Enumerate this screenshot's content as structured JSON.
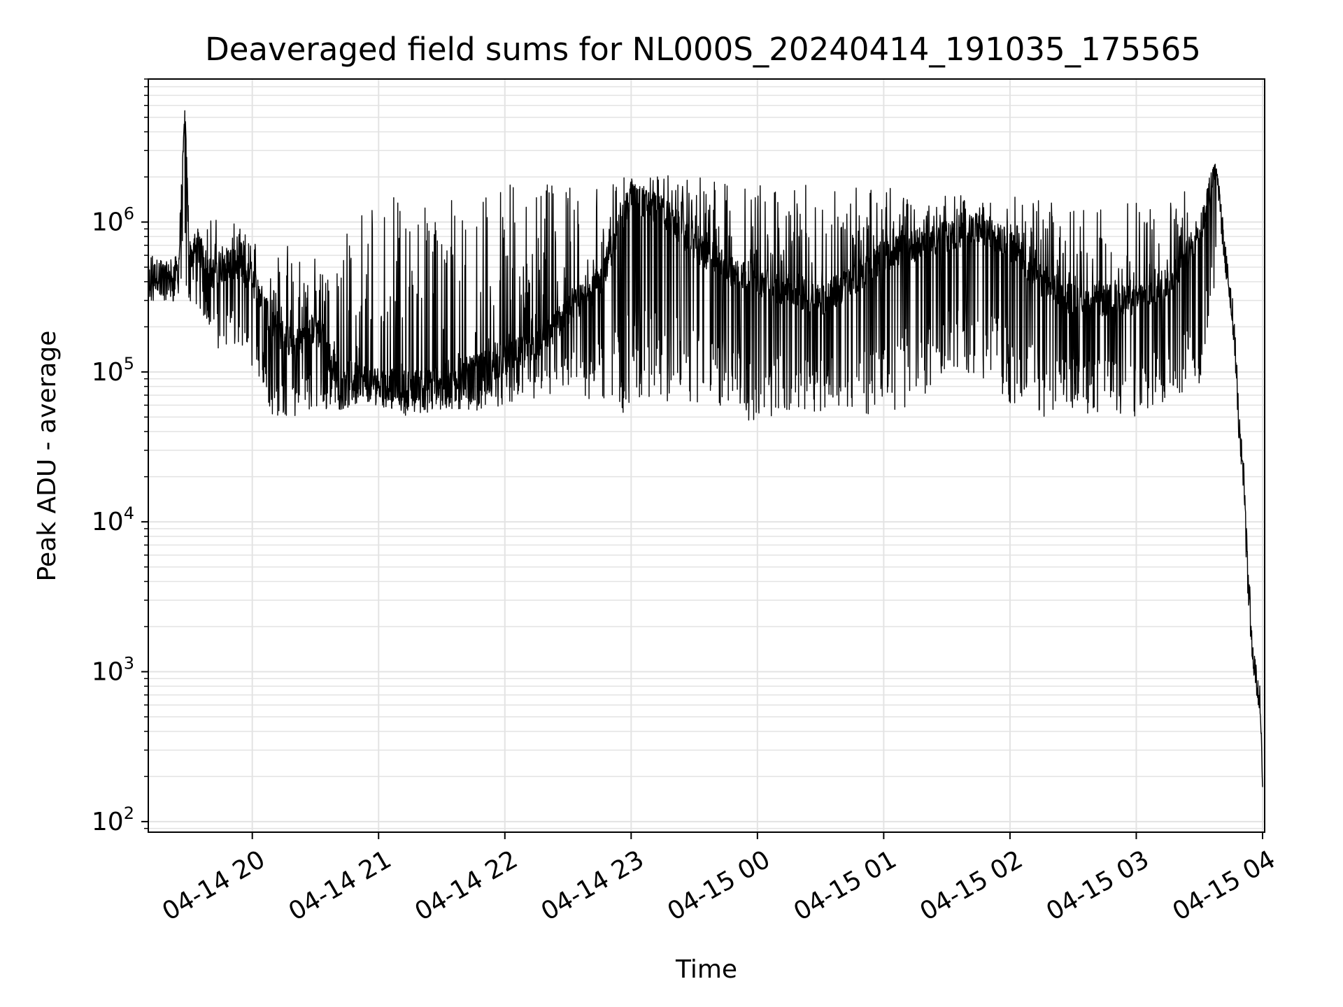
{
  "chart_data": {
    "type": "line",
    "title": "Deaveraged field sums for NL000S_20240414_191035_175565",
    "xlabel": "Time",
    "ylabel": "Peak ADU - average",
    "yscale": "log",
    "ylim": [
      85,
      9000000
    ],
    "xlim": [
      "2024-04-14 19:10:35",
      "2024-04-15 04:01:00"
    ],
    "grid": "on",
    "line_color": "#000000",
    "grid_color": "#e3e3e3",
    "x_ticks": [
      {
        "time": "2024-04-14 20:00",
        "label": "04-14 20"
      },
      {
        "time": "2024-04-14 21:00",
        "label": "04-14 21"
      },
      {
        "time": "2024-04-14 22:00",
        "label": "04-14 22"
      },
      {
        "time": "2024-04-14 23:00",
        "label": "04-14 23"
      },
      {
        "time": "2024-04-15 00:00",
        "label": "04-15 00"
      },
      {
        "time": "2024-04-15 01:00",
        "label": "04-15 01"
      },
      {
        "time": "2024-04-15 02:00",
        "label": "04-15 02"
      },
      {
        "time": "2024-04-15 03:00",
        "label": "04-15 03"
      },
      {
        "time": "2024-04-15 04:00",
        "label": "04-15 04"
      }
    ],
    "y_ticks": [
      {
        "value": 100,
        "base": "10",
        "exp": "2"
      },
      {
        "value": 1000,
        "base": "10",
        "exp": "3"
      },
      {
        "value": 10000,
        "base": "10",
        "exp": "4"
      },
      {
        "value": 100000,
        "base": "10",
        "exp": "5"
      },
      {
        "value": 1000000,
        "base": "10",
        "exp": "6"
      }
    ],
    "series": [
      {
        "name": "",
        "x": [
          "2024-04-14 19:10:35",
          "2024-04-14 19:15",
          "2024-04-14 19:20",
          "2024-04-14 19:25",
          "2024-04-14 19:28",
          "2024-04-14 19:30",
          "2024-04-14 19:35",
          "2024-04-14 19:40",
          "2024-04-14 19:45",
          "2024-04-14 19:50",
          "2024-04-14 19:55",
          "2024-04-14 20:00",
          "2024-04-14 20:10",
          "2024-04-14 20:20",
          "2024-04-14 20:30",
          "2024-04-14 20:40",
          "2024-04-14 20:50",
          "2024-04-14 21:00",
          "2024-04-14 21:15",
          "2024-04-14 21:30",
          "2024-04-14 21:45",
          "2024-04-14 22:00",
          "2024-04-14 22:15",
          "2024-04-14 22:30",
          "2024-04-14 22:45",
          "2024-04-14 23:00",
          "2024-04-14 23:15",
          "2024-04-14 23:30",
          "2024-04-14 23:45",
          "2024-04-15 00:00",
          "2024-04-15 00:15",
          "2024-04-15 00:30",
          "2024-04-15 00:45",
          "2024-04-15 01:00",
          "2024-04-15 01:15",
          "2024-04-15 01:30",
          "2024-04-15 01:45",
          "2024-04-15 02:00",
          "2024-04-15 02:15",
          "2024-04-15 02:30",
          "2024-04-15 02:45",
          "2024-04-15 03:00",
          "2024-04-15 03:15",
          "2024-04-15 03:30",
          "2024-04-15 03:38",
          "2024-04-15 03:42",
          "2024-04-15 03:45",
          "2024-04-15 03:47",
          "2024-04-15 03:49",
          "2024-04-15 03:51",
          "2024-04-15 03:53",
          "2024-04-15 03:55",
          "2024-04-15 03:57",
          "2024-04-15 03:59",
          "2024-04-15 04:00"
        ],
        "y": [
          400000,
          450000,
          420000,
          480000,
          5800000,
          600000,
          650000,
          450000,
          500000,
          550000,
          480000,
          420000,
          200000,
          150000,
          200000,
          100000,
          90000,
          85000,
          80000,
          90000,
          100000,
          120000,
          150000,
          250000,
          400000,
          1500000,
          1200000,
          700000,
          500000,
          400000,
          350000,
          300000,
          400000,
          600000,
          700000,
          800000,
          900000,
          700000,
          400000,
          300000,
          300000,
          300000,
          400000,
          800000,
          2500000,
          600000,
          300000,
          150000,
          40000,
          20000,
          5000,
          1500,
          900,
          600,
          170
        ],
        "trace_min": [
          260000,
          300000,
          280000,
          300000,
          350000,
          300000,
          250000,
          200000,
          130000,
          150000,
          120000,
          100000,
          50000,
          50000,
          55000,
          55000,
          60000,
          60000,
          50000,
          55000,
          55000,
          60000,
          65000,
          70000,
          60000,
          50000,
          60000,
          60000,
          55000,
          45000,
          50000,
          55000,
          55000,
          50000,
          60000,
          90000,
          100000,
          55000,
          50000,
          55000,
          50000,
          48000,
          60000,
          70000,
          400000,
          500000,
          250000,
          100000,
          30000,
          15000,
          3000,
          1200,
          700,
          500,
          170
        ],
        "trace_max": [
          600000,
          650000,
          600000,
          700000,
          5800000,
          900000,
          1000000,
          1300000,
          900000,
          1000000,
          900000,
          800000,
          800000,
          700000,
          600000,
          500000,
          1500000,
          1600000,
          1400000,
          1500000,
          1700000,
          1800000,
          1900000,
          1900000,
          1900000,
          2000000,
          2100000,
          2000000,
          1900000,
          1900000,
          1800000,
          1800000,
          1700000,
          1800000,
          1600000,
          1600000,
          1500000,
          1500000,
          1400000,
          1300000,
          1200000,
          1400000,
          1700000,
          1600000,
          2500000,
          900000,
          400000,
          200000,
          50000,
          25000,
          8000,
          1800,
          1400,
          900,
          300
        ]
      }
    ]
  }
}
